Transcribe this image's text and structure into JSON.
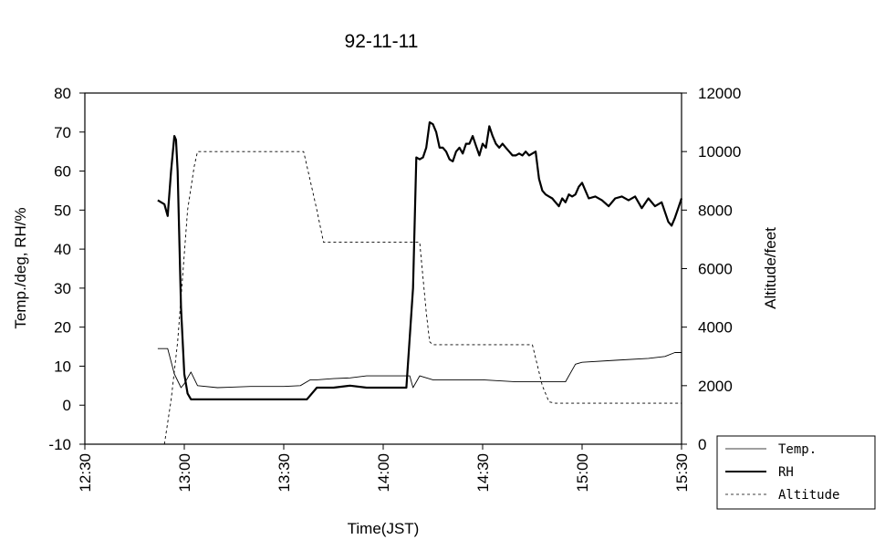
{
  "chart_data": {
    "type": "line",
    "title": "92-11-11",
    "xlabel": "Time(JST)",
    "ylabel": "Temp./deg, RH/%",
    "y2label": "Altitude/feet",
    "xlim": [
      "12:30",
      "15:30"
    ],
    "ylim": [
      -10,
      80
    ],
    "y2lim": [
      0,
      12000
    ],
    "xticks": [
      "12:30",
      "13:00",
      "13:30",
      "14:00",
      "14:30",
      "15:00",
      "15:30"
    ],
    "yticks": [
      "-10",
      "0",
      "10",
      "20",
      "30",
      "40",
      "50",
      "60",
      "70",
      "80"
    ],
    "y2ticks": [
      "0",
      "2000",
      "4000",
      "6000",
      "8000",
      "10000",
      "12000"
    ],
    "grid": false,
    "legend": "bottom-right, outside plot",
    "series": [
      {
        "name": "Temp.",
        "axis": "left",
        "style": "thin-solid",
        "x": [
          "12:52",
          "12:55",
          "12:57",
          "12:59",
          "13:00",
          "13:02",
          "13:04",
          "13:10",
          "13:20",
          "13:30",
          "13:35",
          "13:38",
          "13:40",
          "13:45",
          "13:50",
          "13:55",
          "14:00",
          "14:05",
          "14:08",
          "14:09",
          "14:11",
          "14:15",
          "14:20",
          "14:30",
          "14:40",
          "14:50",
          "14:55",
          "14:58",
          "15:00",
          "15:10",
          "15:20",
          "15:25",
          "15:28",
          "15:30"
        ],
        "values": [
          14.5,
          14.5,
          8,
          4.5,
          5.5,
          8.5,
          5,
          4.5,
          4.8,
          4.8,
          5,
          6.5,
          6.5,
          6.8,
          7,
          7.5,
          7.5,
          7.5,
          7.5,
          4.5,
          7.5,
          6.5,
          6.5,
          6.5,
          6,
          6,
          6,
          10.5,
          11,
          11.5,
          12,
          12.5,
          13.5,
          13.5
        ]
      },
      {
        "name": "RH",
        "axis": "left",
        "style": "thick-solid",
        "x": [
          "12:52",
          "12:54",
          "12:55",
          "12:56",
          "12:57",
          "12:57.5",
          "12:58",
          "12:59",
          "13:00",
          "13:01",
          "13:02",
          "13:05",
          "13:10",
          "13:20",
          "13:30",
          "13:37",
          "13:40",
          "13:45",
          "13:50",
          "13:55",
          "14:00",
          "14:07",
          "14:09",
          "14:10",
          "14:11",
          "14:12",
          "14:13",
          "14:14",
          "14:15",
          "14:16",
          "14:17",
          "14:18",
          "14:19",
          "14:20",
          "14:21",
          "14:22",
          "14:23",
          "14:24",
          "14:25",
          "14:26",
          "14:27",
          "14:28",
          "14:29",
          "14:30",
          "14:31",
          "14:32",
          "14:33",
          "14:34",
          "14:35",
          "14:36",
          "14:37",
          "14:38",
          "14:39",
          "14:40",
          "14:41",
          "14:42",
          "14:43",
          "14:44",
          "14:45",
          "14:46",
          "14:47",
          "14:48",
          "14:49",
          "14:50",
          "14:51",
          "14:52",
          "14:53",
          "14:54",
          "14:55",
          "14:56",
          "14:57",
          "14:58",
          "14:59",
          "15:00",
          "15:02",
          "15:04",
          "15:06",
          "15:08",
          "15:10",
          "15:12",
          "15:14",
          "15:16",
          "15:18",
          "15:20",
          "15:22",
          "15:24",
          "15:26",
          "15:27",
          "15:28",
          "15:29",
          "15:30"
        ],
        "values": [
          52.5,
          51.5,
          48.5,
          60,
          69,
          68,
          60,
          25,
          8,
          3,
          1.5,
          1.5,
          1.5,
          1.5,
          1.5,
          1.5,
          4.5,
          4.5,
          5,
          4.5,
          4.5,
          4.5,
          30,
          63.5,
          63,
          63.5,
          66,
          72.5,
          72,
          70,
          66,
          66,
          65,
          63,
          62.5,
          65,
          66,
          64.5,
          67,
          67,
          69,
          66.5,
          64,
          67,
          66,
          71.5,
          69,
          67,
          66,
          67,
          66,
          65,
          64,
          64,
          64.5,
          64,
          65,
          64,
          64.5,
          65,
          58,
          55,
          54,
          53.5,
          53,
          52,
          51,
          53,
          52,
          54,
          53.5,
          54,
          56,
          57,
          53,
          53.5,
          52.5,
          51,
          53,
          53.5,
          52.5,
          53.5,
          50.5,
          53,
          51,
          52,
          47,
          46,
          48,
          50.5,
          53
        ]
      },
      {
        "name": "Altitude",
        "axis": "right",
        "style": "dashed",
        "x": [
          "12:54",
          "12:56",
          "12:57",
          "12:58",
          "12:59",
          "13:00",
          "13:01",
          "13:03",
          "13:04",
          "13:08",
          "13:20",
          "13:30",
          "13:36",
          "13:38",
          "13:40",
          "13:42",
          "13:50",
          "14:00",
          "14:08",
          "14:11",
          "14:13",
          "14:14",
          "14:15",
          "14:20",
          "14:30",
          "14:40",
          "14:45",
          "14:48",
          "14:50",
          "14:52",
          "15:00",
          "15:10",
          "15:20",
          "15:30"
        ],
        "values": [
          0,
          1500,
          2500,
          3500,
          5000,
          6500,
          8000,
          9500,
          10000,
          10000,
          10000,
          10000,
          10000,
          9000,
          8000,
          6900,
          6900,
          6900,
          6900,
          6900,
          4500,
          3500,
          3400,
          3400,
          3400,
          3400,
          3400,
          2000,
          1450,
          1400,
          1400,
          1400,
          1400,
          1400
        ]
      }
    ]
  }
}
